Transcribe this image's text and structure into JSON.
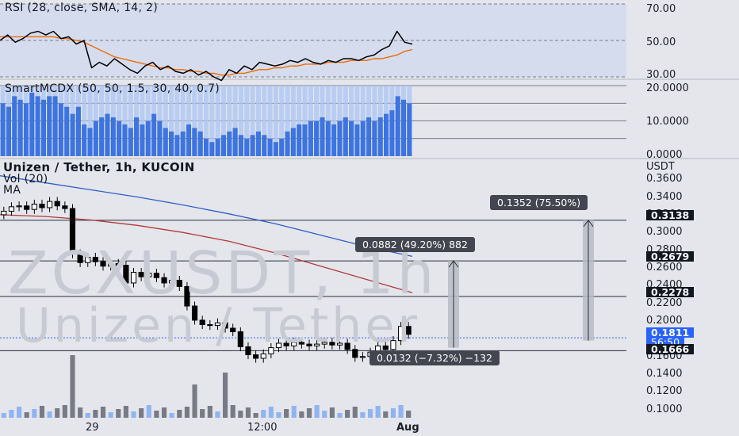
{
  "watermark": {
    "line1": "ZCXUSDT, 1h",
    "line2": "Unizen / Tether"
  },
  "rsi": {
    "title": "RSI (28, close, SMA, 14, 2)",
    "axis_ticks": [
      "70.00",
      "50.00",
      "30.00"
    ]
  },
  "smart": {
    "title": "SmartMCDX (50, 50, 1.5, 30, 40, 0.7)",
    "axis_ticks": [
      "20.0000",
      "10.0000",
      "0.0000"
    ]
  },
  "main": {
    "title": "Unizen / Tether, 1h, KUCOIN",
    "vol_label": "Vol (20)",
    "ma_label": "MA",
    "currency": "USDT",
    "axis_ticks": [
      "0.3600",
      "0.3400",
      "0.3200",
      "0.3000",
      "0.2800",
      "0.2600",
      "0.2400",
      "0.2200",
      "0.2000",
      "0.1800",
      "0.1600",
      "0.1400",
      "0.1200",
      "0.1000"
    ],
    "level_tags": [
      "0.3138",
      "0.2679",
      "0.2278",
      "0.1666"
    ],
    "current_price": "0.1811",
    "countdown": "56:50",
    "measures": [
      "0.1352 (75.50%)",
      "0.0882 (49.20%) 882",
      "0.0132 (−7.32%) −132"
    ]
  },
  "time_axis": [
    "29",
    "12:00",
    "Aug"
  ],
  "colors": {
    "rsi_line": "#000000",
    "rsi_ma": "#ef6c00",
    "smart_bar": "#3d74e0",
    "smart_bg": "#aec7f5",
    "ma_blue": "#2f5fc6",
    "ma_red": "#b23a3a",
    "candle": "#000000",
    "vol_gray": "#787b86",
    "vol_blue": "#90b4f0",
    "band_fill": "#c9d4f0"
  },
  "chart_data": [
    {
      "type": "line",
      "title": "RSI (28, close, SMA, 14, 2)",
      "ylim": [
        30,
        70
      ],
      "series": [
        {
          "name": "RSI",
          "values": [
            50,
            53,
            49,
            51,
            54,
            55,
            53,
            55,
            51,
            52,
            48,
            50,
            35,
            38,
            36,
            40,
            37,
            34,
            32,
            36,
            38,
            34,
            36,
            33,
            32,
            34,
            31,
            33,
            30,
            28,
            34,
            32,
            36,
            34,
            38,
            37,
            36,
            37,
            39,
            38,
            40,
            38,
            37,
            39,
            38,
            40,
            40,
            39,
            41,
            42,
            45,
            47,
            55,
            49,
            48
          ]
        },
        {
          "name": "SMA",
          "values": [
            52,
            52,
            52,
            52,
            52,
            52,
            52,
            52,
            51,
            51,
            50,
            49,
            47,
            45,
            43,
            41,
            40,
            39,
            38,
            37,
            36,
            35,
            35,
            34,
            34,
            33,
            33,
            32,
            32,
            31,
            31,
            32,
            32,
            33,
            34,
            34,
            35,
            35,
            36,
            36,
            37,
            37,
            37,
            38,
            38,
            38,
            39,
            39,
            39,
            40,
            40,
            41,
            42,
            44,
            45
          ]
        }
      ]
    },
    {
      "type": "bar",
      "title": "SmartMCDX (50, 50, 1.5, 30, 40, 0.7)",
      "ylim": [
        0,
        20
      ],
      "values": [
        15,
        14,
        17,
        16,
        15,
        18,
        17,
        16,
        17,
        17,
        15,
        14,
        12,
        14,
        9,
        8,
        10,
        11,
        12,
        11,
        10,
        9,
        8,
        11,
        9,
        10,
        12,
        10,
        8,
        7,
        6,
        7,
        9,
        8,
        7,
        5,
        4,
        5,
        6,
        7,
        8,
        6,
        5,
        6,
        7,
        6,
        5,
        4,
        5,
        7,
        8,
        9,
        9,
        10,
        10,
        11,
        10,
        9,
        10,
        11,
        10,
        9,
        10,
        11,
        10,
        11,
        12,
        13,
        17,
        16,
        15
      ]
    },
    {
      "type": "line",
      "title": "Unizen / Tether, 1h, KUCOIN",
      "ylim": [
        0.09,
        0.37
      ],
      "series": [
        {
          "name": "Close",
          "values": [
            0.324,
            0.329,
            0.33,
            0.326,
            0.332,
            0.328,
            0.335,
            0.33,
            0.327,
            0.276,
            0.266,
            0.272,
            0.267,
            0.262,
            0.265,
            0.263,
            0.243,
            0.255,
            0.25,
            0.254,
            0.249,
            0.243,
            0.246,
            0.239,
            0.217,
            0.201,
            0.196,
            0.195,
            0.198,
            0.192,
            0.188,
            0.171,
            0.162,
            0.158,
            0.163,
            0.17,
            0.175,
            0.172,
            0.176,
            0.174,
            0.172,
            0.174,
            0.176,
            0.173,
            0.175,
            0.168,
            0.159,
            0.16,
            0.165,
            0.172,
            0.168,
            0.178,
            0.194,
            0.185
          ]
        },
        {
          "name": "MA blue",
          "values": [
            0.364,
            0.356,
            0.348,
            0.34,
            0.331,
            0.321,
            0.31,
            0.297,
            0.284,
            0.273
          ]
        },
        {
          "name": "MA red",
          "values": [
            0.32,
            0.318,
            0.314,
            0.308,
            0.3,
            0.29,
            0.277,
            0.262,
            0.247,
            0.232
          ]
        }
      ]
    }
  ]
}
